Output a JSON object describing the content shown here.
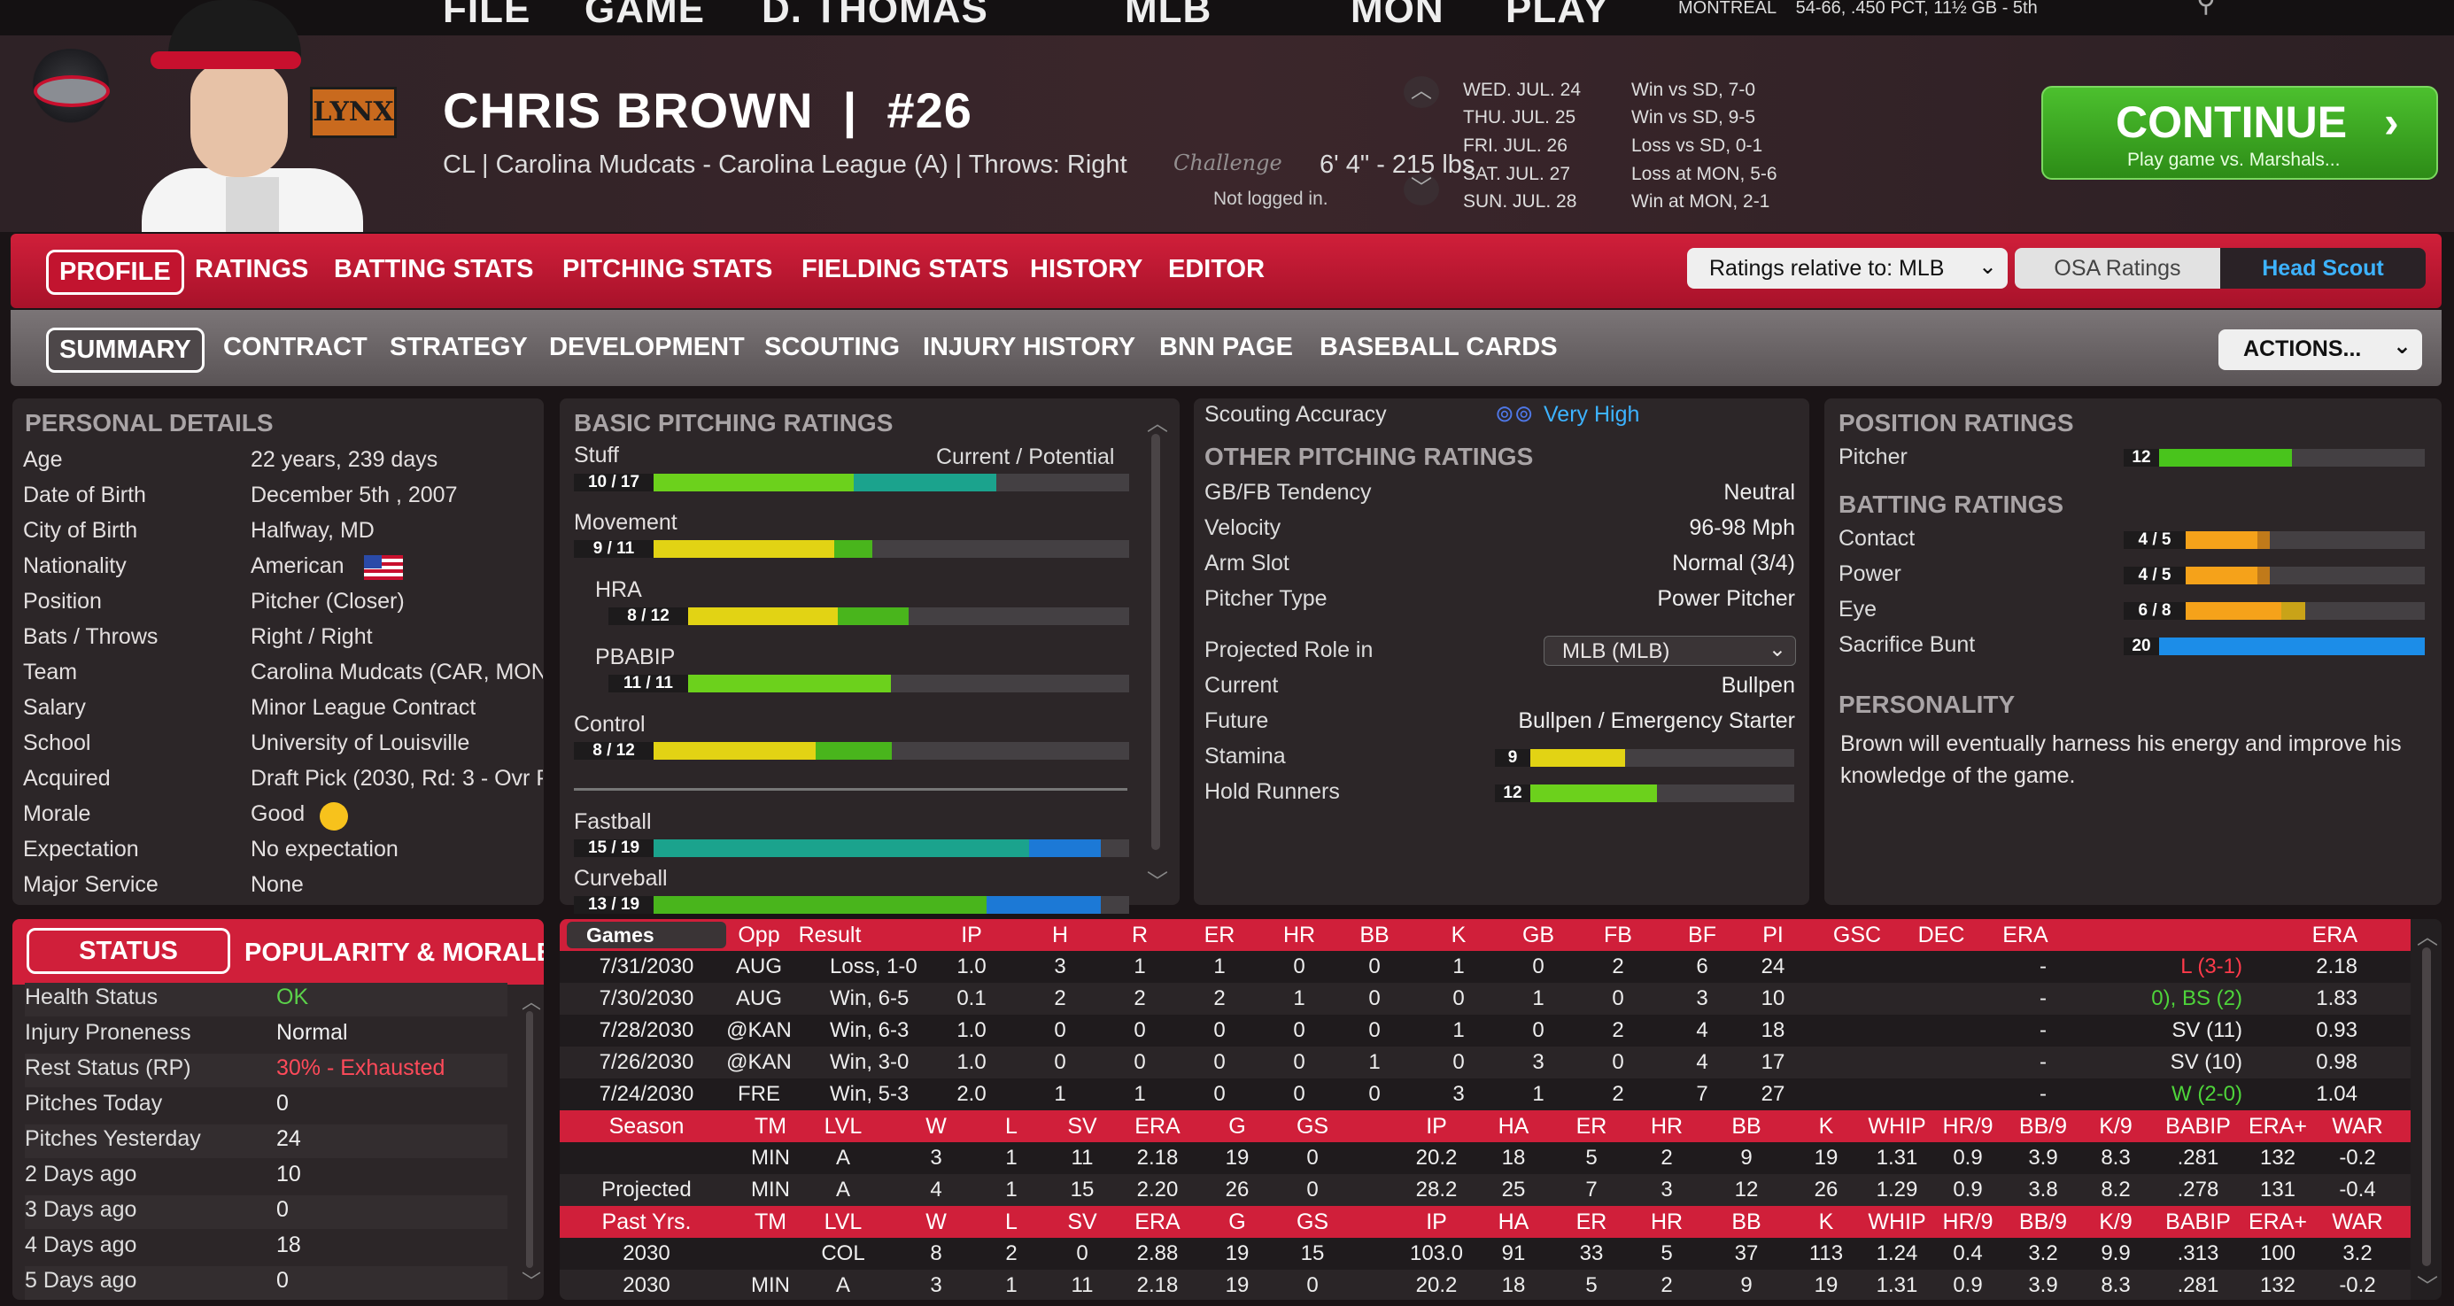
{
  "top_nav": [
    "FILE",
    "GAME",
    "D. THOMAS",
    "MLB",
    "MON",
    "PLAY"
  ],
  "top_status": "MONTREAL    54-66, .450 PCT, 11½ GB - 5th",
  "player": {
    "name": "CHRIS BROWN  |  #26",
    "info": "CL | Carolina Mudcats - Carolina League (A)  |  Throws: Right",
    "height_weight": "6' 4\" - 215 lbs",
    "login": "Not logged in."
  },
  "schedule": [
    {
      "date": "WED. JUL. 24",
      "result": "Win vs SD, 7-0"
    },
    {
      "date": "THU. JUL. 25",
      "result": "Win vs SD, 9-5"
    },
    {
      "date": "FRI. JUL. 26",
      "result": "Loss vs SD, 0-1"
    },
    {
      "date": "SAT. JUL. 27",
      "result": "Loss at MON, 5-6"
    },
    {
      "date": "SUN. JUL. 28",
      "result": "Win at MON, 2-1"
    }
  ],
  "continue": {
    "label": "CONTINUE",
    "sub": "Play game vs. Marshals...",
    "icon": "chevron-right-icon"
  },
  "tabs1": [
    "PROFILE",
    "RATINGS",
    "BATTING STATS",
    "PITCHING STATS",
    "FIELDING STATS",
    "HISTORY",
    "EDITOR"
  ],
  "ratings_relative": "Ratings relative to: MLB",
  "osa": "OSA Ratings",
  "head_scout": "Head Scout",
  "tabs2": [
    "SUMMARY",
    "CONTRACT",
    "STRATEGY",
    "DEVELOPMENT",
    "SCOUTING",
    "INJURY HISTORY",
    "BNN PAGE",
    "BASEBALL CARDS"
  ],
  "actions": "ACTIONS...",
  "personal": {
    "title": "PERSONAL DETAILS",
    "rows": [
      [
        "Age",
        "22 years, 239 days"
      ],
      [
        "Date of Birth",
        "December 5th , 2007"
      ],
      [
        "City of Birth",
        "Halfway, MD"
      ],
      [
        "Nationality",
        "American"
      ],
      [
        "Position",
        "Pitcher (Closer)"
      ],
      [
        "Bats / Throws",
        "Right / Right"
      ],
      [
        "Team",
        "Carolina Mudcats (CAR, MON"
      ],
      [
        "Salary",
        "Minor League Contract"
      ],
      [
        "School",
        "University of Louisville"
      ],
      [
        "Acquired",
        "Draft Pick (2030, Rd: 3 - Ovr P"
      ],
      [
        "Morale",
        "Good"
      ],
      [
        "Expectation",
        "No expectation"
      ],
      [
        "Major Service",
        "None"
      ]
    ]
  },
  "basic_pitching": {
    "title": "BASIC PITCHING RATINGS",
    "header_right": "Current / Potential",
    "items": [
      {
        "name": "Stuff",
        "label": "10 / 17",
        "cur": 0.42,
        "pot": 0.72,
        "c1": "#6cd11c",
        "c2": "#1ba38d"
      },
      {
        "name": "Movement",
        "label": "9 / 11",
        "cur": 0.38,
        "pot": 0.46,
        "c1": "#e2d314",
        "c2": "#49b51c"
      },
      {
        "name": "HRA",
        "label": "8 / 12",
        "cur": 0.34,
        "pot": 0.5,
        "c1": "#e2d314",
        "c2": "#49b51c",
        "indent": true
      },
      {
        "name": "PBABIP",
        "label": "11 / 11",
        "cur": 0.46,
        "pot": 0.46,
        "c1": "#6cd11c",
        "c2": "#6cd11c",
        "indent": true
      },
      {
        "name": "Control",
        "label": "8 / 12",
        "cur": 0.34,
        "pot": 0.5,
        "c1": "#e2d314",
        "c2": "#49b51c"
      },
      {
        "name": "Fastball",
        "label": "15 / 19",
        "cur": 0.79,
        "pot": 0.94,
        "c1": "#1ba38d",
        "c2": "#1c79d6"
      },
      {
        "name": "Curveball",
        "label": "13 / 19",
        "cur": 0.7,
        "pot": 0.94,
        "c1": "#49b51c",
        "c2": "#1c79d6"
      }
    ]
  },
  "other_pitching": {
    "scouting_label": "Scouting Accuracy",
    "scouting_value": "Very High",
    "title": "OTHER PITCHING RATINGS",
    "rows": [
      [
        "GB/FB Tendency",
        "Neutral"
      ],
      [
        "Velocity",
        "96-98 Mph"
      ],
      [
        "Arm Slot",
        "Normal (3/4)"
      ],
      [
        "Pitcher Type",
        "Power Pitcher"
      ]
    ],
    "projected_label": "Projected Role in",
    "projected_value": "MLB (MLB)",
    "rows2": [
      [
        "Current",
        "Bullpen"
      ],
      [
        "Future",
        "Bullpen / Emergency Starter"
      ]
    ],
    "stamina": {
      "name": "Stamina",
      "label": "9",
      "val": 0.36,
      "color": "#e2d314"
    },
    "hold": {
      "name": "Hold Runners",
      "label": "12",
      "val": 0.48,
      "color": "#6cd11c"
    }
  },
  "position": {
    "title": "POSITION RATINGS",
    "pitcher": {
      "name": "Pitcher",
      "label": "12",
      "val": 0.5,
      "color": "#49c41c"
    },
    "batting_title": "BATTING RATINGS",
    "batting": [
      {
        "name": "Contact",
        "label": "4 / 5",
        "cur": 0.3,
        "pot": 0.35,
        "c1": "#f5a21a",
        "c2": "#c07a1a"
      },
      {
        "name": "Power",
        "label": "4 / 5",
        "cur": 0.3,
        "pot": 0.35,
        "c1": "#f5a21a",
        "c2": "#c07a1a"
      },
      {
        "name": "Eye",
        "label": "6 / 8",
        "cur": 0.4,
        "pot": 0.5,
        "c1": "#f5a21a",
        "c2": "#c9a318"
      },
      {
        "name": "Sacrifice Bunt",
        "label": "20",
        "cur": 1.0,
        "pot": 1.0,
        "c1": "#1c8de8",
        "c2": "#1c8de8"
      }
    ],
    "personality_title": "PERSONALITY",
    "personality": "Brown will eventually harness his energy and improve his knowledge of the game."
  },
  "status": {
    "tab1": "STATUS",
    "tab2": "POPULARITY & MORALE",
    "rows": [
      [
        "Health Status",
        "OK"
      ],
      [
        "Injury Proneness",
        "Normal"
      ],
      [
        "Rest Status (RP)",
        "30% - Exhausted"
      ],
      [
        "Pitches Today",
        "0"
      ],
      [
        "Pitches Yesterday",
        "24"
      ],
      [
        "2 Days ago",
        "10"
      ],
      [
        "3 Days ago",
        "0"
      ],
      [
        "4 Days ago",
        "18"
      ],
      [
        "5 Days ago",
        "0"
      ]
    ]
  },
  "games_table": {
    "select": "Games",
    "headers": [
      "Opp",
      "Result",
      "IP",
      "H",
      "R",
      "ER",
      "HR",
      "BB",
      "K",
      "GB",
      "FB",
      "BF",
      "PI",
      "GSC",
      "DEC",
      "ERA"
    ],
    "rows": [
      [
        "7/31/2030",
        "AUG",
        "Loss, 1-0",
        "1.0",
        "3",
        "1",
        "1",
        "0",
        "0",
        "1",
        "0",
        "2",
        "6",
        "24",
        "-",
        "L (3-1)",
        "2.18"
      ],
      [
        "7/30/2030",
        "AUG",
        "Win, 6-5",
        "0.1",
        "2",
        "2",
        "2",
        "1",
        "0",
        "0",
        "1",
        "0",
        "3",
        "10",
        "-",
        "0), BS (2)",
        "1.83"
      ],
      [
        "7/28/2030",
        "@KAN",
        "Win, 6-3",
        "1.0",
        "0",
        "0",
        "0",
        "0",
        "0",
        "1",
        "0",
        "2",
        "4",
        "18",
        "-",
        "SV (11)",
        "0.93"
      ],
      [
        "7/26/2030",
        "@KAN",
        "Win, 3-0",
        "1.0",
        "0",
        "0",
        "0",
        "0",
        "1",
        "0",
        "3",
        "0",
        "4",
        "17",
        "-",
        "SV (10)",
        "0.98"
      ],
      [
        "7/24/2030",
        "FRE",
        "Win, 5-3",
        "2.0",
        "1",
        "1",
        "0",
        "0",
        "0",
        "3",
        "1",
        "2",
        "7",
        "27",
        "-",
        "W (2-0)",
        "1.04"
      ]
    ]
  },
  "season_table": {
    "headers": [
      "Season",
      "TM",
      "LVL",
      "W",
      "L",
      "SV",
      "ERA",
      "G",
      "GS",
      "IP",
      "HA",
      "ER",
      "HR",
      "BB",
      "K",
      "WHIP",
      "HR/9",
      "BB/9",
      "K/9",
      "BABIP",
      "ERA+",
      "WAR"
    ],
    "rows": [
      [
        "",
        "MIN",
        "A",
        "3",
        "1",
        "11",
        "2.18",
        "19",
        "0",
        "20.2",
        "18",
        "5",
        "2",
        "9",
        "19",
        "1.31",
        "0.9",
        "3.9",
        "8.3",
        ".281",
        "132",
        "-0.2"
      ],
      [
        "Projected",
        "MIN",
        "A",
        "4",
        "1",
        "15",
        "2.20",
        "26",
        "0",
        "28.2",
        "25",
        "7",
        "3",
        "12",
        "26",
        "1.29",
        "0.9",
        "3.8",
        "8.2",
        ".278",
        "131",
        "-0.4"
      ]
    ]
  },
  "past_table": {
    "headers": [
      "Past Yrs.",
      "TM",
      "LVL",
      "W",
      "L",
      "SV",
      "ERA",
      "G",
      "GS",
      "IP",
      "HA",
      "ER",
      "HR",
      "BB",
      "K",
      "WHIP",
      "HR/9",
      "BB/9",
      "K/9",
      "BABIP",
      "ERA+",
      "WAR"
    ],
    "rows": [
      [
        "2030",
        "",
        "COL",
        "8",
        "2",
        "0",
        "2.88",
        "19",
        "15",
        "103.0",
        "91",
        "33",
        "5",
        "37",
        "113",
        "1.24",
        "0.4",
        "3.2",
        "9.9",
        ".313",
        "100",
        "3.2"
      ],
      [
        "2030",
        "MIN",
        "A",
        "3",
        "1",
        "11",
        "2.18",
        "19",
        "0",
        "20.2",
        "18",
        "5",
        "2",
        "9",
        "19",
        "1.31",
        "0.9",
        "3.9",
        "8.3",
        ".281",
        "132",
        "-0.2"
      ]
    ]
  }
}
